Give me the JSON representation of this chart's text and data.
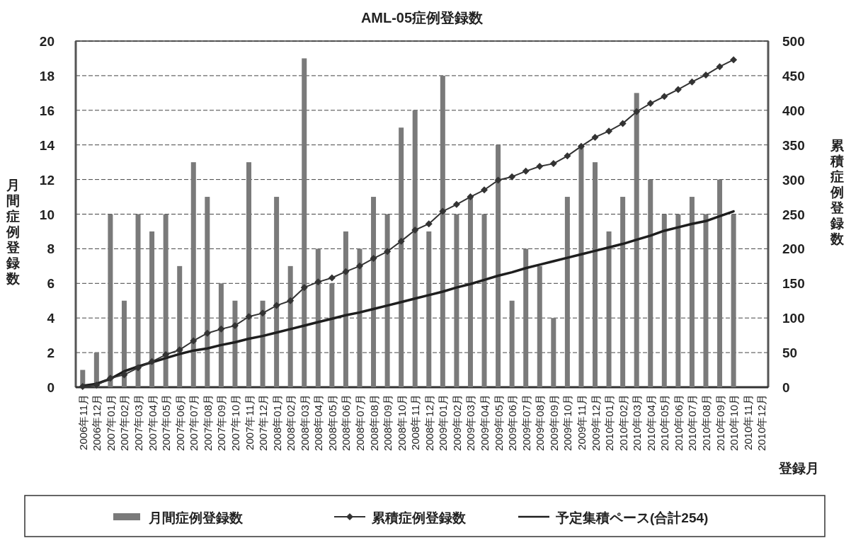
{
  "chart_data": {
    "type": "bar",
    "title": "AML-05症例登録数",
    "xlabel": "登録月",
    "ylabel": "月間症例登録数",
    "y2label": "累積症例登録数",
    "categories": [
      "2006年11月",
      "2006年12月",
      "2007年01月",
      "2007年02月",
      "2007年03月",
      "2007年04月",
      "2007年05月",
      "2007年06月",
      "2007年07月",
      "2007年08月",
      "2007年09月",
      "2007年10月",
      "2007年11月",
      "2007年12月",
      "2008年01月",
      "2008年02月",
      "2008年03月",
      "2008年04月",
      "2008年05月",
      "2008年06月",
      "2008年07月",
      "2008年08月",
      "2008年09月",
      "2008年10月",
      "2008年11月",
      "2008年12月",
      "2009年01月",
      "2009年02月",
      "2009年03月",
      "2009年04月",
      "2009年05月",
      "2009年06月",
      "2009年07月",
      "2009年08月",
      "2009年09月",
      "2009年10月",
      "2009年11月",
      "2009年12月",
      "2010年01月",
      "2010年02月",
      "2010年03月",
      "2010年04月",
      "2010年05月",
      "2010年06月",
      "2010年07月",
      "2010年08月",
      "2010年09月",
      "2010年10月",
      "2010年11月",
      "2010年12月"
    ],
    "series": [
      {
        "name": "月間症例登録数",
        "type": "bar",
        "color": "#7a7a7a",
        "values": [
          1,
          2,
          10,
          5,
          10,
          9,
          10,
          7,
          13,
          11,
          6,
          5,
          13,
          5,
          11,
          7,
          19,
          8,
          6,
          9,
          8,
          11,
          10,
          15,
          16,
          9,
          18,
          10,
          11,
          10,
          14,
          5,
          8,
          7,
          4,
          11,
          14,
          13,
          9,
          11,
          17,
          12,
          10,
          10,
          11,
          10,
          12,
          10,
          null,
          null
        ]
      },
      {
        "name": "累積症例登録数",
        "type": "line",
        "axis": "y2",
        "color": "#333333",
        "marker": "diamond",
        "values": [
          1,
          3,
          13,
          18,
          28,
          37,
          47,
          54,
          67,
          78,
          84,
          89,
          102,
          107,
          118,
          125,
          144,
          152,
          158,
          167,
          175,
          186,
          196,
          211,
          227,
          236,
          254,
          264,
          275,
          285,
          299,
          304,
          312,
          319,
          323,
          334,
          348,
          361,
          370,
          381,
          398,
          410,
          420,
          430,
          441,
          451,
          463,
          473,
          null,
          null
        ]
      },
      {
        "name": "予定集積ペース(合計254)",
        "type": "line",
        "axis": "y2",
        "color": "#1e1e1e",
        "values": [
          2,
          5,
          12,
          23,
          30,
          36,
          42,
          48,
          53,
          56,
          61,
          65,
          70,
          74,
          79,
          84,
          89,
          94,
          99,
          104,
          108,
          113,
          118,
          123,
          128,
          133,
          138,
          144,
          149,
          155,
          161,
          166,
          172,
          177,
          182,
          187,
          192,
          197,
          202,
          207,
          213,
          219,
          226,
          231,
          236,
          240,
          247,
          254,
          null,
          null
        ]
      }
    ],
    "ylim": [
      0,
      20
    ],
    "yticks": [
      0,
      2,
      4,
      6,
      8,
      10,
      12,
      14,
      16,
      18,
      20
    ],
    "y2lim": [
      0,
      500
    ],
    "y2ticks": [
      0,
      50,
      100,
      150,
      200,
      250,
      300,
      350,
      400,
      450,
      500
    ],
    "grid": "y",
    "legend": "bottom"
  }
}
